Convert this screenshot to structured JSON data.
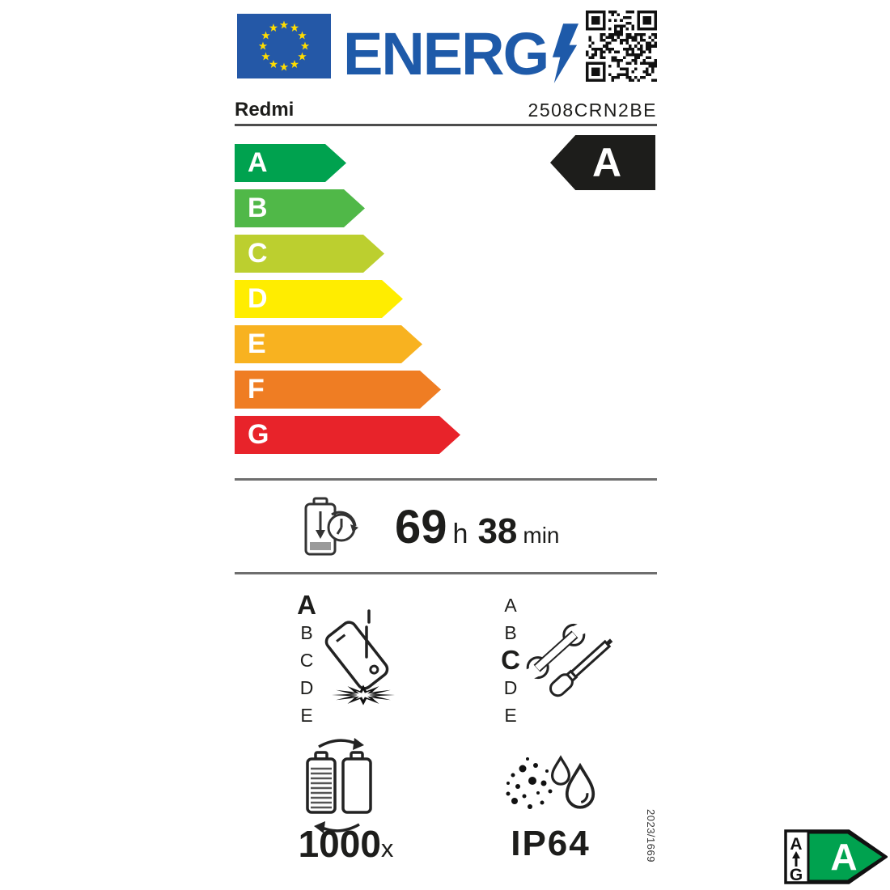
{
  "header": {
    "eu_flag": {
      "field_color": "#2458a7",
      "star_color": "#ffdd00"
    },
    "logo": {
      "text": "ENERG",
      "color": "#1e5aa9"
    },
    "qr": {
      "label": "qr-code"
    }
  },
  "brand": {
    "name": "Redmi",
    "model": "2508CRN2BE"
  },
  "scale": {
    "bars": [
      {
        "label": "A",
        "color": "#00a24f"
      },
      {
        "label": "B",
        "color": "#50b848"
      },
      {
        "label": "C",
        "color": "#bccf2f"
      },
      {
        "label": "D",
        "color": "#ffed00"
      },
      {
        "label": "E",
        "color": "#f8b220"
      },
      {
        "label": "F",
        "color": "#ef7d23"
      },
      {
        "label": "G",
        "color": "#e8232a"
      }
    ],
    "selected_class": "A",
    "selected_bg": "#1d1d1b"
  },
  "battery_life": {
    "hours": "69",
    "hours_unit": "h",
    "minutes": "38",
    "minutes_unit": "min"
  },
  "drop_class": {
    "options": [
      "A",
      "B",
      "C",
      "D",
      "E"
    ],
    "selected": "A"
  },
  "repair_class": {
    "options": [
      "A",
      "B",
      "C",
      "D",
      "E"
    ],
    "selected": "C"
  },
  "battery_cycles": {
    "value": "1000",
    "unit": "x"
  },
  "ingress_protection": {
    "rating": "IP64"
  },
  "regulation_number": "2023/1669",
  "mini_label": {
    "top_class": "A",
    "bottom_class": "G",
    "selected_class": "A",
    "arrow_color": "#00a24f"
  }
}
